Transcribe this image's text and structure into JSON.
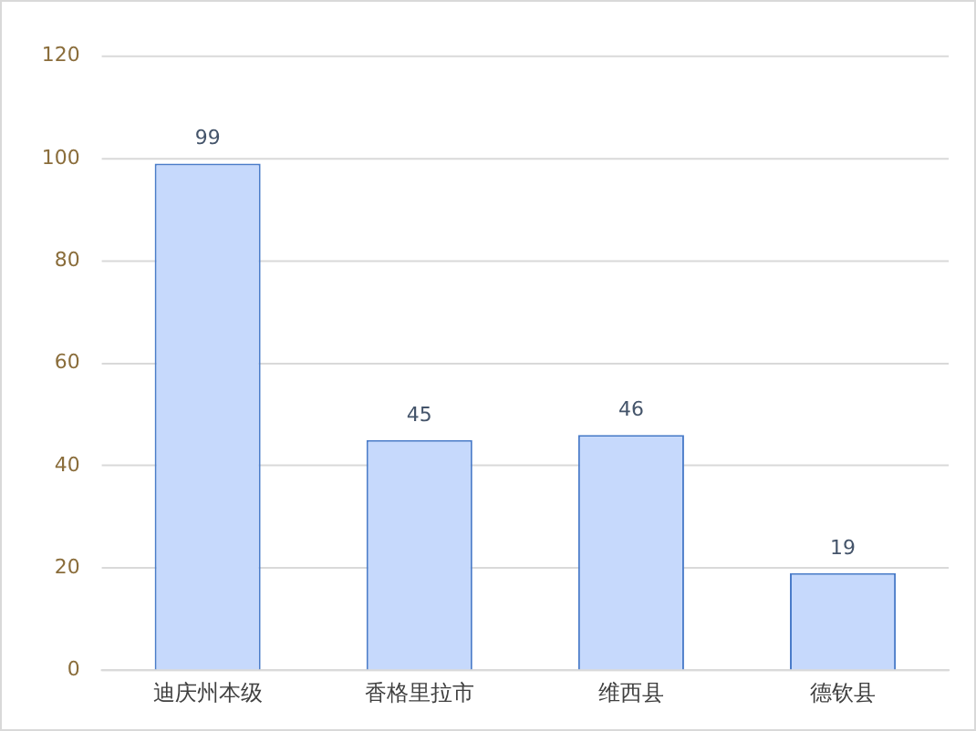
{
  "chart_data": {
    "type": "bar",
    "categories": [
      "迪庆州本级",
      "香格里拉市",
      "维西县",
      "德钦县"
    ],
    "values": [
      99,
      45,
      46,
      19
    ],
    "color": "#c6d9fc",
    "ylim": [
      0,
      120
    ],
    "yticks": [
      0,
      20,
      40,
      60,
      80,
      100,
      120
    ],
    "grid": "y",
    "data_labels": true,
    "legend": false
  }
}
